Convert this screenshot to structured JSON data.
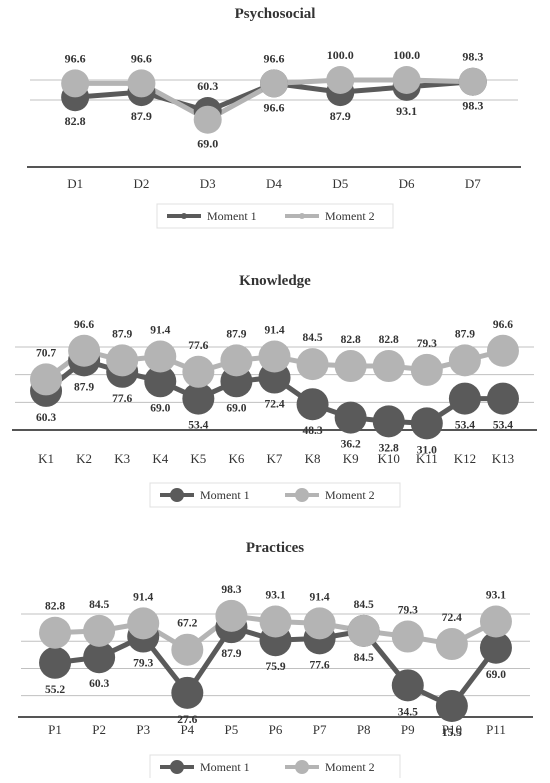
{
  "colors": {
    "moment1": "#5a5a5a",
    "moment2": "#b4b4b4",
    "grid": "#c0c0c0",
    "axis": "#555555",
    "text": "#333333",
    "legend_border": "#e0e0e0"
  },
  "chart_data": [
    {
      "type": "line",
      "title": "Psychosocial",
      "categories": [
        "D1",
        "D2",
        "D3",
        "D4",
        "D5",
        "D6",
        "D7"
      ],
      "series": [
        {
          "name": "Moment 1",
          "values": [
            82.8,
            87.9,
            69.0,
            96.6,
            87.9,
            93.1,
            98.3
          ],
          "labels": [
            "82.8",
            "87.9",
            "69.0",
            "96.6",
            "87.9",
            "93.1",
            "98.3"
          ]
        },
        {
          "name": "Moment 2",
          "values": [
            96.6,
            96.6,
            60.3,
            96.6,
            100.0,
            100.0,
            98.3
          ],
          "labels": [
            "96.6",
            "96.6",
            "60.3",
            "96.6",
            "100.0",
            "100.0",
            "98.3"
          ]
        }
      ],
      "ylim": [
        0,
        100
      ],
      "grid": true,
      "legend": "bottom"
    },
    {
      "type": "line",
      "title": "Knowledge",
      "categories": [
        "K1",
        "K2",
        "K3",
        "K4",
        "K5",
        "K6",
        "K7",
        "K8",
        "K9",
        "K10",
        "K11",
        "K12",
        "K13"
      ],
      "series": [
        {
          "name": "Moment 1",
          "values": [
            60.3,
            87.9,
            77.6,
            69.0,
            53.4,
            69.0,
            72.4,
            48.3,
            36.2,
            32.8,
            31.0,
            53.4,
            53.4
          ],
          "labels": [
            "60.3",
            "87.9",
            "77.6",
            "69.0",
            "53.4",
            "69.0",
            "72.4",
            "48.3",
            "36.2",
            "32.8",
            "31.0",
            "53.4",
            "53.4"
          ]
        },
        {
          "name": "Moment 2",
          "values": [
            70.7,
            96.6,
            87.9,
            91.4,
            77.6,
            87.9,
            91.4,
            84.5,
            82.8,
            82.8,
            79.3,
            87.9,
            96.6
          ],
          "labels": [
            "70.7",
            "96.6",
            "87.9",
            "91.4",
            "77.6",
            "87.9",
            "91.4",
            "84.5",
            "82.8",
            "82.8",
            "79.3",
            "87.9",
            "96.6"
          ]
        }
      ],
      "ylim": [
        0,
        100
      ],
      "grid": true,
      "legend": "bottom"
    },
    {
      "type": "line",
      "title": "Practices",
      "categories": [
        "P1",
        "P2",
        "P3",
        "P4",
        "P5",
        "P6",
        "P7",
        "P8",
        "P9",
        "P10",
        "P11"
      ],
      "series": [
        {
          "name": "Moment 1",
          "values": [
            55.2,
            60.3,
            79.3,
            27.6,
            87.9,
            75.9,
            77.6,
            84.5,
            34.5,
            15.5,
            69.0
          ],
          "labels": [
            "55.2",
            "60.3",
            "79.3",
            "27.6",
            "87.9",
            "75.9",
            "77.6",
            "84.5",
            "34.5",
            "15.5",
            "69.0"
          ]
        },
        {
          "name": "Moment 2",
          "values": [
            82.8,
            84.5,
            91.4,
            67.2,
            98.3,
            93.1,
            91.4,
            84.5,
            79.3,
            72.4,
            93.1
          ],
          "labels": [
            "82.8",
            "84.5",
            "91.4",
            "67.2",
            "98.3",
            "93.1",
            "91.4",
            "84.5",
            "79.3",
            "72.4",
            "93.1"
          ]
        }
      ],
      "ylim": [
        0,
        100
      ],
      "grid": true,
      "legend": "bottom"
    }
  ]
}
